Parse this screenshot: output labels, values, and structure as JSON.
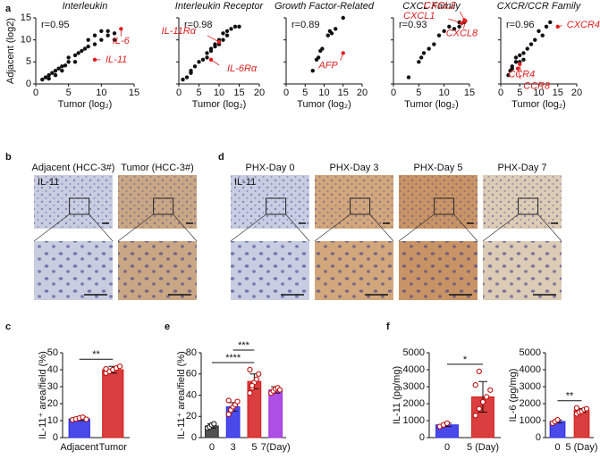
{
  "figure": {
    "panel_labels": [
      "a",
      "b",
      "c",
      "d",
      "e",
      "f"
    ],
    "micrographs_b": {
      "columns": [
        "Adjacent (HCC-3#)",
        "Tumor (HCC-3#)"
      ],
      "stain": "IL-11"
    },
    "micrographs_d": {
      "columns": [
        "PHX-Day 0",
        "PHX-Day 3",
        "PHX-Day 5",
        "PHX-Day 7"
      ],
      "stain": "IL-11"
    }
  },
  "chart_data": [
    {
      "type": "scatter",
      "title": "Interleukin",
      "r_label": "r=0.95",
      "xlabel": "Tumor (log₂)",
      "ylabel": "Adjacent (log2)",
      "xlim": [
        0,
        15
      ],
      "xticks": [
        0,
        5,
        10,
        15
      ],
      "ylim": [
        0,
        15
      ],
      "yticks": [
        0,
        5,
        10,
        15
      ],
      "show_ytick_labels": true,
      "series": [
        {
          "color": "#111111",
          "x": [
            1,
            1.5,
            2,
            2,
            2.5,
            3,
            3,
            3.5,
            4,
            4,
            4.5,
            5,
            5,
            6,
            6,
            6.5,
            7,
            7.5,
            8,
            8,
            9,
            9,
            10,
            10,
            11,
            11,
            12,
            12
          ],
          "values": [
            1,
            1.5,
            1.2,
            2,
            2.5,
            2,
            3,
            3.5,
            3,
            4,
            4.2,
            5,
            6,
            5,
            6.5,
            7,
            7.5,
            8,
            8.5,
            10,
            9,
            11,
            10,
            12,
            11,
            12,
            10,
            11.5
          ]
        },
        {
          "color": "#e02020",
          "x": [
            13,
            9
          ],
          "values": [
            12.5,
            5.5
          ]
        }
      ],
      "annotations": [
        {
          "text": "IL-6",
          "x": 13,
          "y": 12.5
        },
        {
          "text": "IL-11",
          "x": 9,
          "y": 5.5
        }
      ]
    },
    {
      "type": "scatter",
      "title": "Interleukin Receptor",
      "r_label": "r=0.98",
      "xlabel": "Tumor (log₂)",
      "xlim": [
        0,
        20
      ],
      "xticks": [
        0,
        5,
        10,
        15,
        20
      ],
      "ylim": [
        0,
        15
      ],
      "yticks": [
        0,
        5,
        10,
        15
      ],
      "show_ytick_labels": false,
      "series": [
        {
          "color": "#111111",
          "x": [
            1,
            2,
            3,
            3,
            4,
            5,
            6,
            7,
            7,
            8,
            8,
            9,
            9,
            10,
            10,
            11,
            12,
            12,
            13,
            14,
            15,
            11
          ],
          "values": [
            1,
            1.5,
            2.5,
            3,
            4,
            5,
            5.5,
            6,
            7,
            7.5,
            8,
            8.5,
            9,
            9,
            10,
            10,
            11,
            12,
            12.5,
            13,
            13,
            11.5
          ]
        },
        {
          "color": "#e02020",
          "x": [
            10,
            8
          ],
          "values": [
            9.5,
            5.5
          ]
        }
      ],
      "annotations": [
        {
          "text": "IL-11Rα",
          "x": 10,
          "y": 9.5
        },
        {
          "text": "IL-6Rα",
          "x": 8,
          "y": 5.5
        }
      ]
    },
    {
      "type": "scatter",
      "title": "Growth Factor-Related",
      "r_label": "r=0.89",
      "xlabel": "Tumor (log₂)",
      "xlim": [
        0,
        20
      ],
      "xticks": [
        0,
        5,
        10,
        15,
        20
      ],
      "ylim": [
        0,
        15
      ],
      "yticks": [
        0,
        5,
        10,
        15
      ],
      "show_ytick_labels": false,
      "series": [
        {
          "color": "#111111",
          "x": [
            7,
            8,
            8.5,
            9,
            9.5,
            11,
            11.5,
            12,
            13,
            15
          ],
          "values": [
            3,
            5.5,
            6,
            7.5,
            8,
            11,
            12,
            11.5,
            12.5,
            15
          ]
        },
        {
          "color": "#e02020",
          "x": [
            15
          ],
          "values": [
            7
          ]
        }
      ],
      "annotations": [
        {
          "text": "AFP",
          "x": 15,
          "y": 7
        }
      ]
    },
    {
      "type": "scatter",
      "title": "CXCL Family",
      "r_label": "r=0.93",
      "xlabel": "Tumor (log₂)",
      "xlim": [
        0,
        15
      ],
      "xticks": [
        0,
        5,
        10,
        15
      ],
      "ylim": [
        0,
        15
      ],
      "yticks": [
        0,
        5,
        10,
        15
      ],
      "show_ytick_labels": false,
      "series": [
        {
          "color": "#111111",
          "x": [
            3,
            5,
            5.5,
            6,
            7,
            8,
            9,
            10,
            11,
            12,
            13,
            13,
            14
          ],
          "values": [
            1.5,
            5,
            6,
            7,
            8,
            9,
            11,
            12,
            13,
            12.5,
            13,
            14,
            14
          ]
        },
        {
          "color": "#e02020",
          "x": [
            14,
            13.5,
            14.2
          ],
          "values": [
            14.5,
            13.8,
            14.3
          ]
        }
      ],
      "annotations": [
        {
          "text": "CXCL2",
          "x": 14,
          "y": 14.5
        },
        {
          "text": "CXCL1",
          "x": 13.5,
          "y": 13.8
        },
        {
          "text": "CXCL8",
          "x": 14.2,
          "y": 14.3
        }
      ]
    },
    {
      "type": "scatter",
      "title": "CXCR/CCR Family",
      "r_label": "r=0.96",
      "xlabel": "Tumor (log₂)",
      "xlim": [
        0,
        20
      ],
      "xticks": [
        0,
        5,
        10,
        15,
        20
      ],
      "ylim": [
        0,
        15
      ],
      "yticks": [
        0,
        5,
        10,
        15
      ],
      "show_ytick_labels": false,
      "series": [
        {
          "color": "#111111",
          "x": [
            2,
            2.5,
            3,
            3,
            4,
            4,
            5,
            5,
            6,
            7,
            8,
            9,
            10,
            12,
            13,
            11,
            6
          ],
          "values": [
            2,
            3,
            3.5,
            4,
            5,
            6,
            6.5,
            5,
            7,
            8,
            9,
            10,
            12,
            13,
            14,
            11,
            5.5
          ]
        },
        {
          "color": "#e02020",
          "x": [
            15,
            5,
            4.5
          ],
          "values": [
            13,
            4.5,
            3.5
          ]
        }
      ],
      "annotations": [
        {
          "text": "CXCR4",
          "x": 15,
          "y": 13
        },
        {
          "text": "CCR4",
          "x": 5,
          "y": 4.5
        },
        {
          "text": "CCR8",
          "x": 4.5,
          "y": 3.5
        }
      ]
    },
    {
      "type": "bar",
      "ylabel": "IL-11⁺ area/field (%)",
      "categories": [
        "Adjacent",
        "Tumor"
      ],
      "values": [
        11,
        40
      ],
      "errors": [
        1,
        2
      ],
      "colors": [
        "#2a2ae8",
        "#d41c1c"
      ],
      "points": [
        [
          10.5,
          11,
          11.5,
          12,
          10.8
        ],
        [
          38,
          39,
          40,
          41,
          42,
          40.5
        ]
      ],
      "ylim": [
        0,
        50
      ],
      "yticks": [
        0,
        10,
        20,
        30,
        40,
        50
      ],
      "significance": [
        {
          "text": "**",
          "from": 0,
          "to": 1
        }
      ]
    },
    {
      "type": "bar",
      "ylabel": "IL-11⁺ area/field (%)",
      "categories": [
        "0",
        "3",
        "5",
        "7(Day)"
      ],
      "values": [
        11,
        29,
        53,
        45
      ],
      "errors": [
        2,
        4,
        7,
        3
      ],
      "colors": [
        "#333333",
        "#2a2ae8",
        "#d41c1c",
        "#a030e0"
      ],
      "points": [
        [
          9,
          10,
          12,
          13
        ],
        [
          22,
          26,
          29,
          31,
          34,
          35
        ],
        [
          42,
          47,
          52,
          55,
          60,
          64,
          49
        ],
        [
          42,
          44,
          46,
          47,
          45
        ]
      ],
      "ylim": [
        0,
        80
      ],
      "yticks": [
        0,
        20,
        40,
        60,
        80
      ],
      "significance": [
        {
          "text": "****",
          "from": 0,
          "to": 2
        },
        {
          "text": "***",
          "from": 1,
          "to": 2
        }
      ]
    },
    {
      "type": "bar",
      "ylabel": "IL-11 (pg/mg)",
      "categories": [
        "0",
        "5 (Day)"
      ],
      "values": [
        750,
        2400
      ],
      "errors": [
        100,
        900
      ],
      "colors": [
        "#2a2ae8",
        "#d41c1c"
      ],
      "points": [
        [
          650,
          750,
          850
        ],
        [
          1300,
          1700,
          2100,
          2400,
          2800,
          3100,
          3900
        ]
      ],
      "ylim": [
        0,
        5000
      ],
      "yticks": [
        0,
        1000,
        2000,
        3000,
        4000,
        5000
      ],
      "significance": [
        {
          "text": "*",
          "from": 0,
          "to": 1
        }
      ]
    },
    {
      "type": "bar",
      "ylabel": "IL-6 (pg/mg)",
      "categories": [
        "0",
        "5 (Day)"
      ],
      "values": [
        950,
        1600
      ],
      "errors": [
        80,
        120
      ],
      "colors": [
        "#2a2ae8",
        "#d41c1c"
      ],
      "points": [
        [
          850,
          950,
          1050
        ],
        [
          1400,
          1500,
          1550,
          1650,
          1700,
          1750
        ]
      ],
      "ylim": [
        0,
        5000
      ],
      "yticks": [
        0,
        1000,
        2000,
        3000,
        4000,
        5000
      ],
      "significance": [
        {
          "text": "**",
          "from": 0,
          "to": 1
        }
      ]
    }
  ]
}
